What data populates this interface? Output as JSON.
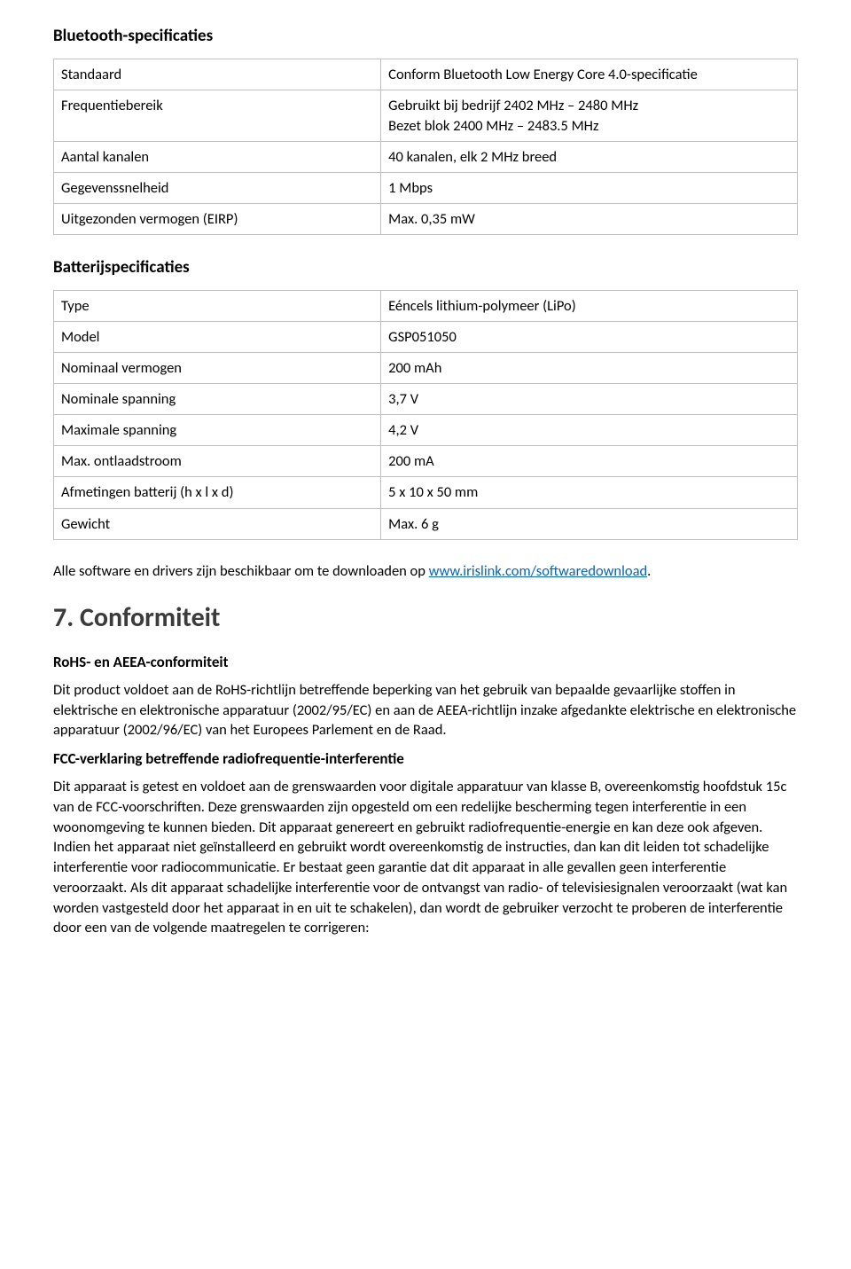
{
  "bluetooth": {
    "heading": "Bluetooth-specificaties",
    "rows": [
      {
        "label": "Standaard",
        "value": "Conform Bluetooth Low Energy Core 4.0-specificatie"
      },
      {
        "label": "Frequentiebereik",
        "value": "Gebruikt bij bedrijf 2402 MHz – 2480 MHz\nBezet blok 2400 MHz – 2483.5 MHz"
      },
      {
        "label": "Aantal kanalen",
        "value": "40 kanalen, elk 2 MHz breed"
      },
      {
        "label": "Gegevenssnelheid",
        "value": "1 Mbps"
      },
      {
        "label": "Uitgezonden vermogen (EIRP)",
        "value": "Max. 0,35 mW"
      }
    ]
  },
  "battery": {
    "heading": "Batterijspecificaties",
    "rows": [
      {
        "label": "Type",
        "value": "Eéncels lithium-polymeer (LiPo)"
      },
      {
        "label": "Model",
        "value": "GSP051050"
      },
      {
        "label": "Nominaal vermogen",
        "value": "200 mAh"
      },
      {
        "label": "Nominale spanning",
        "value": "3,7 V"
      },
      {
        "label": "Maximale spanning",
        "value": "4,2 V"
      },
      {
        "label": "Max. ontlaadstroom",
        "value": "200 mA"
      },
      {
        "label": "Afmetingen batterij (h x l x d)",
        "value": "5 x 10 x 50 mm"
      },
      {
        "label": "Gewicht",
        "value": "Max. 6 g"
      }
    ]
  },
  "software_note": {
    "prefix": "Alle software en drivers zijn beschikbaar om te downloaden op ",
    "link_text": "www.irislink.com/softwaredownload",
    "suffix": "."
  },
  "conformity": {
    "heading": "7. Conformiteit",
    "rohs": {
      "heading": "RoHS- en AEEA-conformiteit",
      "body": "Dit product voldoet aan de RoHS-richtlijn betreffende beperking van het gebruik van bepaalde gevaarlijke stoffen in elektrische en elektronische apparatuur (2002/95/EC) en aan de AEEA-richtlijn inzake afgedankte elektrische en elektronische apparatuur (2002/96/EC) van het Europees Parlement en de Raad."
    },
    "fcc": {
      "heading": "FCC-verklaring betreffende radiofrequentie-interferentie",
      "body": "Dit apparaat is getest en voldoet aan de grenswaarden voor digitale apparatuur van klasse B, overeenkomstig hoofdstuk 15c van de FCC-voorschriften. Deze grenswaarden zijn opgesteld om een redelijke bescherming tegen interferentie in een woonomgeving te kunnen bieden. Dit apparaat genereert en gebruikt radiofrequentie-energie en kan deze ook afgeven. Indien het apparaat niet geïnstalleerd en gebruikt wordt overeenkomstig de instructies, dan kan dit leiden tot schadelijke interferentie voor radiocommunicatie. Er bestaat geen garantie dat dit apparaat in alle gevallen geen interferentie veroorzaakt. Als dit apparaat schadelijke interferentie voor de ontvangst van radio- of televisiesignalen veroorzaakt (wat kan worden vastgesteld door het apparaat in en uit te schakelen), dan wordt de gebruiker verzocht te proberen de interferentie door een van de volgende maatregelen te corrigeren:"
    }
  }
}
